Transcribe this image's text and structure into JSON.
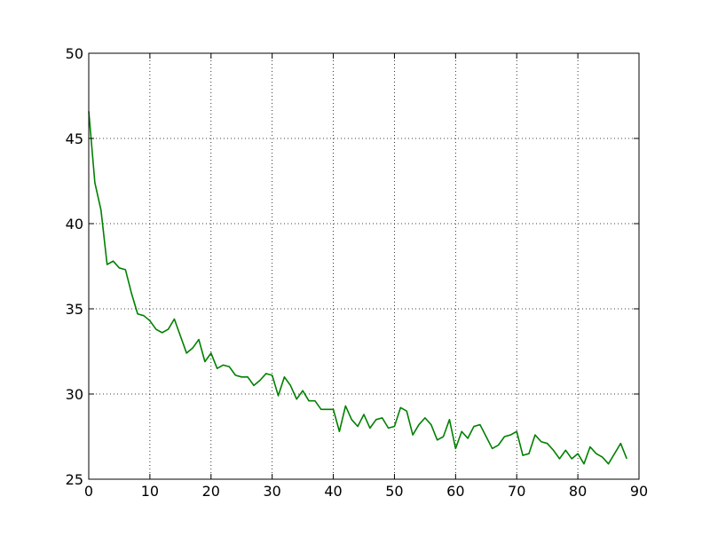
{
  "chart_data": {
    "type": "line",
    "title": "",
    "xlabel": "",
    "ylabel": "",
    "xlim": [
      0,
      90
    ],
    "ylim": [
      25,
      50
    ],
    "x_ticks": [
      0,
      10,
      20,
      30,
      40,
      50,
      60,
      70,
      80,
      90
    ],
    "y_ticks": [
      25,
      30,
      35,
      40,
      45,
      50
    ],
    "x_tick_labels": [
      "0",
      "10",
      "20",
      "30",
      "40",
      "50",
      "60",
      "70",
      "80",
      "90"
    ],
    "y_tick_labels": [
      "25",
      "30",
      "35",
      "40",
      "45",
      "50"
    ],
    "grid": true,
    "grid_style": "dotted",
    "series": [
      {
        "color": "#008000",
        "x": [
          0,
          1,
          2,
          3,
          4,
          5,
          6,
          7,
          8,
          9,
          10,
          11,
          12,
          13,
          14,
          15,
          16,
          17,
          18,
          19,
          20,
          21,
          22,
          23,
          24,
          25,
          26,
          27,
          28,
          29,
          30,
          31,
          32,
          33,
          34,
          35,
          36,
          37,
          38,
          39,
          40,
          41,
          42,
          43,
          44,
          45,
          46,
          47,
          48,
          49,
          50,
          51,
          52,
          53,
          54,
          55,
          56,
          57,
          58,
          59,
          60,
          61,
          62,
          63,
          64,
          65,
          66,
          67,
          68,
          69,
          70,
          71,
          72,
          73,
          74,
          75,
          76,
          77,
          78,
          79,
          80,
          81,
          82,
          83,
          84,
          85,
          87,
          88
        ],
        "y": [
          46.6,
          42.4,
          40.8,
          37.6,
          37.8,
          37.4,
          37.3,
          35.9,
          34.7,
          34.6,
          34.3,
          33.8,
          33.6,
          33.8,
          34.4,
          33.4,
          32.4,
          32.7,
          33.2,
          31.9,
          32.4,
          31.5,
          31.7,
          31.6,
          31.1,
          31.0,
          31.0,
          30.5,
          30.8,
          31.2,
          31.1,
          29.9,
          31.0,
          30.5,
          29.7,
          30.2,
          29.6,
          29.6,
          29.1,
          29.1,
          29.1,
          27.8,
          29.3,
          28.5,
          28.1,
          28.8,
          28.0,
          28.5,
          28.6,
          28.0,
          28.1,
          29.2,
          29.0,
          27.6,
          28.2,
          28.6,
          28.2,
          27.3,
          27.5,
          28.5,
          26.8,
          27.8,
          27.4,
          28.1,
          28.2,
          27.5,
          26.8,
          27.0,
          27.5,
          27.6,
          27.8,
          26.4,
          26.5,
          27.6,
          27.2,
          27.1,
          26.7,
          26.2,
          26.7,
          26.2,
          26.5,
          25.9,
          26.9,
          26.5,
          26.3,
          25.9,
          27.1,
          26.2
        ]
      }
    ]
  }
}
